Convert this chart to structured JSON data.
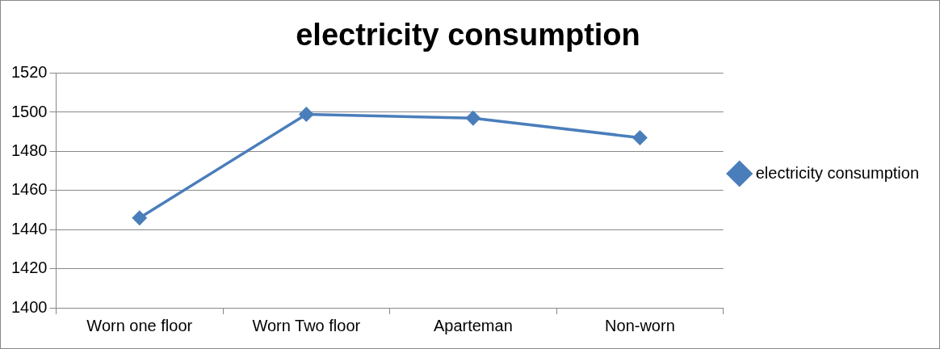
{
  "chart_data": {
    "type": "line",
    "title": "electricity consumption",
    "categories": [
      "Worn one floor",
      "Worn Two floor",
      "Aparteman",
      "Non-worn"
    ],
    "series": [
      {
        "name": "electricity consumption",
        "color": "#4a7ebb",
        "values": [
          1446,
          1499,
          1497,
          1487
        ]
      }
    ],
    "ylim": [
      1400,
      1520
    ],
    "yticks": [
      1400,
      1420,
      1440,
      1460,
      1480,
      1500,
      1520
    ],
    "grid": "y",
    "legend": "right",
    "marker": "diamond",
    "line_style": "solid"
  }
}
